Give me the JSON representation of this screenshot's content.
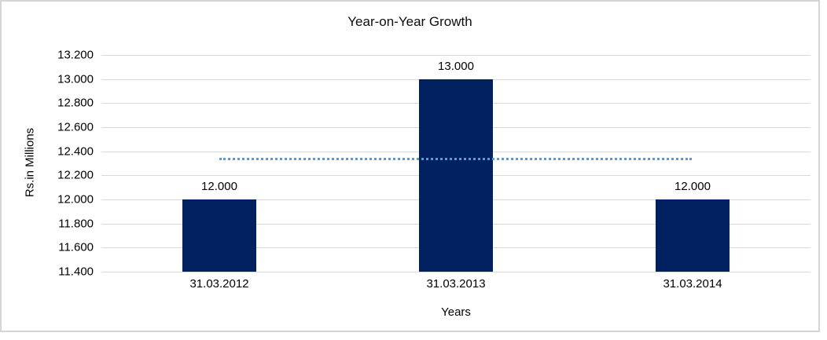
{
  "chart_data": {
    "type": "bar",
    "title": "Year-on-Year Growth",
    "xlabel": "Years",
    "ylabel": "Rs.in Millions",
    "categories": [
      "31.03.2012",
      "31.03.2013",
      "31.03.2014"
    ],
    "values": [
      12.0,
      13.0,
      12.0
    ],
    "value_labels": [
      "12.000",
      "13.000",
      "12.000"
    ],
    "y_ticks": [
      "11.400",
      "11.600",
      "11.800",
      "12.000",
      "12.200",
      "12.400",
      "12.600",
      "12.800",
      "13.000",
      "13.200"
    ],
    "ylim": [
      11.4,
      13.2
    ],
    "grid": true,
    "legend": false,
    "average_line": {
      "value": 12.333,
      "style": "dotted",
      "span": "first-category-center-to-last-category-center"
    },
    "colors": {
      "bar": "#002060",
      "average_line": "#5b9bd5",
      "gridline": "#d9d9d9",
      "text": "#000000",
      "chart_border": "#d5d5d5"
    }
  }
}
